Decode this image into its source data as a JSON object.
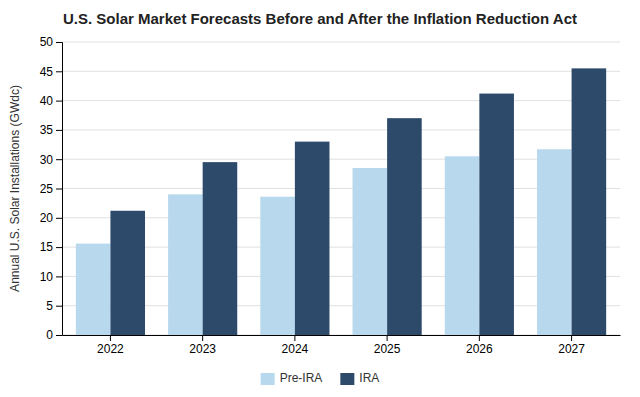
{
  "chart_data": {
    "type": "bar",
    "title": "U.S. Solar Market Forecasts Before and After the Inflation Reduction Act",
    "ylabel": "Annual U.S. Solar Installations (GWdc)",
    "categories": [
      "2022",
      "2023",
      "2024",
      "2025",
      "2026",
      "2027"
    ],
    "series": [
      {
        "name": "Pre-IRA",
        "color": "#b8d9ed",
        "values": [
          15.6,
          24.0,
          23.6,
          28.5,
          30.5,
          31.7
        ]
      },
      {
        "name": "IRA",
        "color": "#2d4a6b",
        "values": [
          21.2,
          29.5,
          33.0,
          37.0,
          41.2,
          45.5
        ]
      }
    ],
    "ylim": [
      0,
      50
    ],
    "yticks": [
      0,
      5,
      10,
      15,
      20,
      25,
      30,
      35,
      40,
      45,
      50
    ],
    "grid": true,
    "legend": "bottom"
  }
}
